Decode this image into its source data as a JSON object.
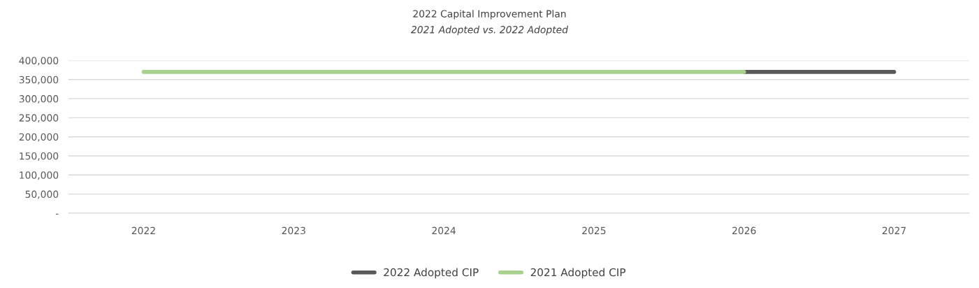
{
  "chart_data": {
    "type": "line",
    "title": "2022 Capital Improvement Plan",
    "subtitle": "2021 Adopted vs. 2022 Adopted",
    "categories": [
      "2022",
      "2023",
      "2024",
      "2025",
      "2026",
      "2027"
    ],
    "series": [
      {
        "name": "2022 Adopted CIP",
        "color": "#595959",
        "values": [
          null,
          null,
          null,
          null,
          370000,
          370000
        ]
      },
      {
        "name": "2021 Adopted CIP",
        "color": "#a9d18e",
        "values": [
          370000,
          370000,
          370000,
          370000,
          370000,
          null
        ]
      }
    ],
    "ylim": [
      0,
      400000
    ],
    "yticks": [
      {
        "value": 0,
        "label": "-"
      },
      {
        "value": 50000,
        "label": "50,000"
      },
      {
        "value": 100000,
        "label": "100,000"
      },
      {
        "value": 150000,
        "label": "150,000"
      },
      {
        "value": 200000,
        "label": "200,000"
      },
      {
        "value": 250000,
        "label": "250,000"
      },
      {
        "value": 300000,
        "label": "300,000"
      },
      {
        "value": 350000,
        "label": "350,000"
      },
      {
        "value": 400000,
        "label": "400,000"
      }
    ],
    "grid": "y",
    "legend": "bottom",
    "marker": "none",
    "line_style": "solid"
  }
}
